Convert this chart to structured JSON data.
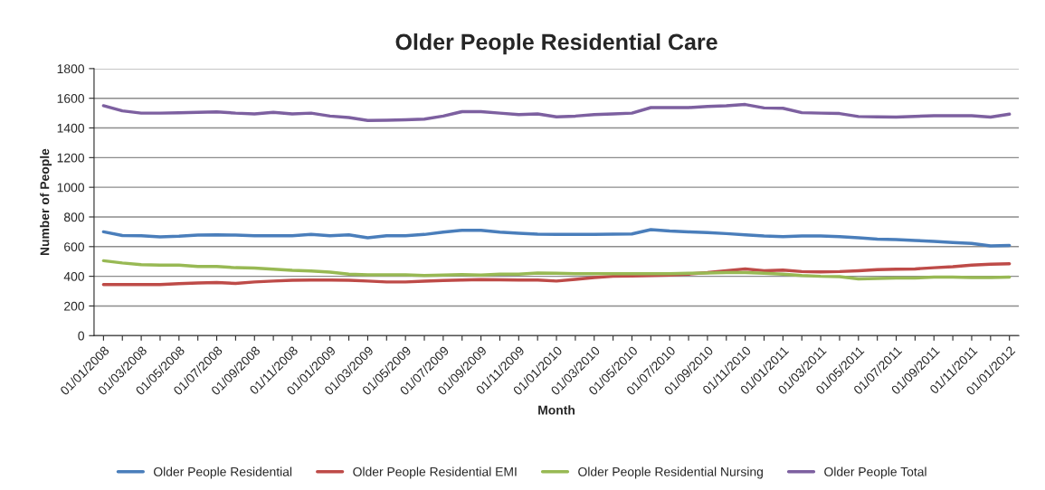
{
  "chart_data": {
    "type": "line",
    "title": "Older People Residential Care",
    "xlabel": "Month",
    "ylabel": "Number of People",
    "categories": [
      "01/01/2008",
      null,
      "01/03/2008",
      null,
      "01/05/2008",
      null,
      "01/07/2008",
      null,
      "01/09/2008",
      null,
      "01/11/2008",
      null,
      "01/01/2009",
      null,
      "01/03/2009",
      null,
      "01/05/2009",
      null,
      "01/07/2009",
      null,
      "01/09/2009",
      null,
      "01/11/2009",
      null,
      "01/01/2010",
      null,
      "01/03/2010",
      null,
      "01/05/2010",
      null,
      "01/07/2010",
      null,
      "01/09/2010",
      null,
      "01/11/2010",
      null,
      "01/01/2011",
      null,
      "01/03/2011",
      null,
      "01/05/2011",
      null,
      "01/07/2011",
      null,
      "01/09/2011",
      null,
      "01/11/2011",
      null,
      "01/01/2012"
    ],
    "series": [
      {
        "name": "Older People Residential",
        "color": "#4a7ebb",
        "values": [
          700,
          675,
          674,
          666,
          670,
          678,
          680,
          678,
          674,
          674,
          674,
          682,
          674,
          680,
          660,
          674,
          674,
          682,
          698,
          710,
          710,
          698,
          690,
          684,
          682,
          682,
          683,
          684,
          686,
          715,
          706,
          700,
          695,
          688,
          680,
          672,
          668,
          672,
          672,
          668,
          660,
          650,
          648,
          642,
          635,
          628,
          622,
          605,
          608
        ]
      },
      {
        "name": "Older People Residential EMI",
        "color": "#be4b48",
        "values": [
          345,
          345,
          345,
          345,
          350,
          355,
          358,
          352,
          362,
          368,
          373,
          375,
          375,
          373,
          368,
          362,
          362,
          367,
          372,
          375,
          378,
          376,
          375,
          375,
          368,
          380,
          392,
          400,
          402,
          405,
          408,
          415,
          425,
          438,
          450,
          438,
          442,
          432,
          430,
          432,
          438,
          445,
          448,
          450,
          458,
          465,
          475,
          482,
          485
        ]
      },
      {
        "name": "Older People Residential Nursing",
        "color": "#98b954",
        "values": [
          505,
          490,
          478,
          475,
          475,
          466,
          466,
          458,
          455,
          448,
          440,
          436,
          428,
          415,
          410,
          410,
          410,
          406,
          408,
          412,
          408,
          415,
          415,
          422,
          420,
          418,
          418,
          418,
          418,
          418,
          418,
          420,
          422,
          425,
          425,
          420,
          415,
          405,
          400,
          398,
          382,
          385,
          388,
          388,
          395,
          395,
          392,
          392,
          395
        ]
      },
      {
        "name": "Older People Total",
        "color": "#7d60a0",
        "values": [
          1550,
          1515,
          1500,
          1500,
          1502,
          1505,
          1508,
          1500,
          1495,
          1505,
          1495,
          1500,
          1480,
          1470,
          1450,
          1452,
          1455,
          1460,
          1480,
          1510,
          1510,
          1500,
          1490,
          1495,
          1475,
          1480,
          1490,
          1495,
          1500,
          1537,
          1537,
          1537,
          1545,
          1550,
          1558,
          1535,
          1533,
          1503,
          1500,
          1497,
          1477,
          1475,
          1473,
          1478,
          1483,
          1483,
          1483,
          1473,
          1493
        ]
      }
    ],
    "ylim": [
      0,
      1800
    ],
    "yticks": [
      0,
      200,
      400,
      600,
      800,
      1000,
      1200,
      1400,
      1600,
      1800
    ],
    "grid": "y",
    "legend": "bottom",
    "marker": "none",
    "line_style": "solid"
  }
}
